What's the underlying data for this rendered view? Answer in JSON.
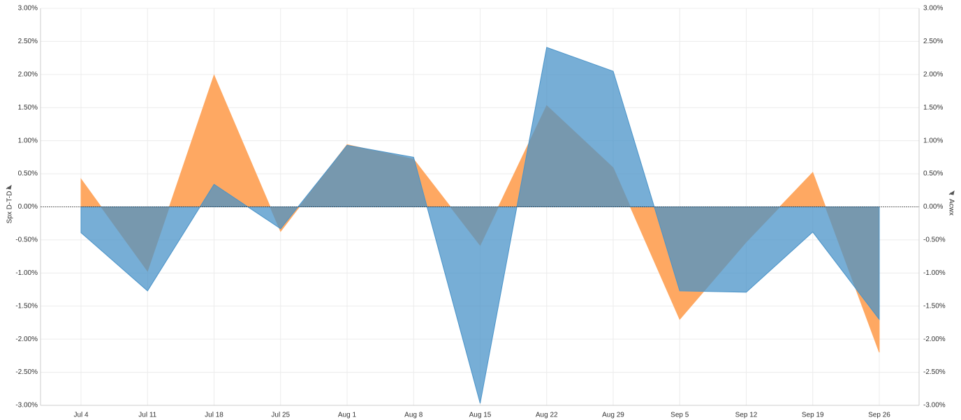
{
  "chart_data": {
    "type": "area",
    "y_label": "Spx D-T-D",
    "y2_label": "Acwx",
    "categories": [
      "Jul 4",
      "Jul 11",
      "Jul 18",
      "Jul 25",
      "Aug 1",
      "Aug 8",
      "Aug 15",
      "Aug 22",
      "Aug 29",
      "Sep 5",
      "Sep 12",
      "Sep 19",
      "Sep 26"
    ],
    "series": [
      {
        "name": "Spx D-T-D",
        "color": "#fea862",
        "values": [
          0.42,
          -0.97,
          1.99,
          -0.37,
          0.94,
          0.72,
          -0.58,
          1.53,
          0.59,
          -1.7,
          -0.53,
          0.52,
          -2.2
        ]
      },
      {
        "name": "Acwx",
        "color": "#4a93c8",
        "axis": "y2",
        "values": [
          -0.39,
          -1.27,
          0.34,
          -0.33,
          0.93,
          0.75,
          -2.97,
          2.41,
          2.05,
          -1.27,
          -1.29,
          -0.38,
          -1.7
        ]
      }
    ],
    "ylim": [
      -3,
      3
    ],
    "yticks": [
      {
        "value": -3,
        "label": "-3.00%"
      },
      {
        "value": -2.5,
        "label": "-2.50%"
      },
      {
        "value": -2,
        "label": "-2.00%"
      },
      {
        "value": -1.5,
        "label": "-1.50%"
      },
      {
        "value": -1,
        "label": "-1.00%"
      },
      {
        "value": -0.5,
        "label": "-0.50%"
      },
      {
        "value": 0,
        "label": "0.00%"
      },
      {
        "value": 0.5,
        "label": "0.50%"
      },
      {
        "value": 1,
        "label": "1.00%"
      },
      {
        "value": 1.5,
        "label": "1.50%"
      },
      {
        "value": 2,
        "label": "2.00%"
      },
      {
        "value": 2.5,
        "label": "2.50%"
      },
      {
        "value": 3,
        "label": "3.00%"
      }
    ],
    "y2lim": [
      -3,
      3
    ],
    "y2ticks": [
      {
        "value": -3,
        "label": "-3.00%"
      },
      {
        "value": -2.5,
        "label": "-2.50%"
      },
      {
        "value": -2,
        "label": "-2.00%"
      },
      {
        "value": -1.5,
        "label": "-1.50%"
      },
      {
        "value": -1,
        "label": "-1.00%"
      },
      {
        "value": -0.5,
        "label": "-0.50%"
      },
      {
        "value": 0,
        "label": "0.00%"
      },
      {
        "value": 0.5,
        "label": "0.50%"
      },
      {
        "value": 1,
        "label": "1.00%"
      },
      {
        "value": 1.5,
        "label": "1.50%"
      },
      {
        "value": 2,
        "label": "2.00%"
      },
      {
        "value": 2.5,
        "label": "2.50%"
      },
      {
        "value": 3,
        "label": "3.00%"
      }
    ],
    "grid": true
  }
}
